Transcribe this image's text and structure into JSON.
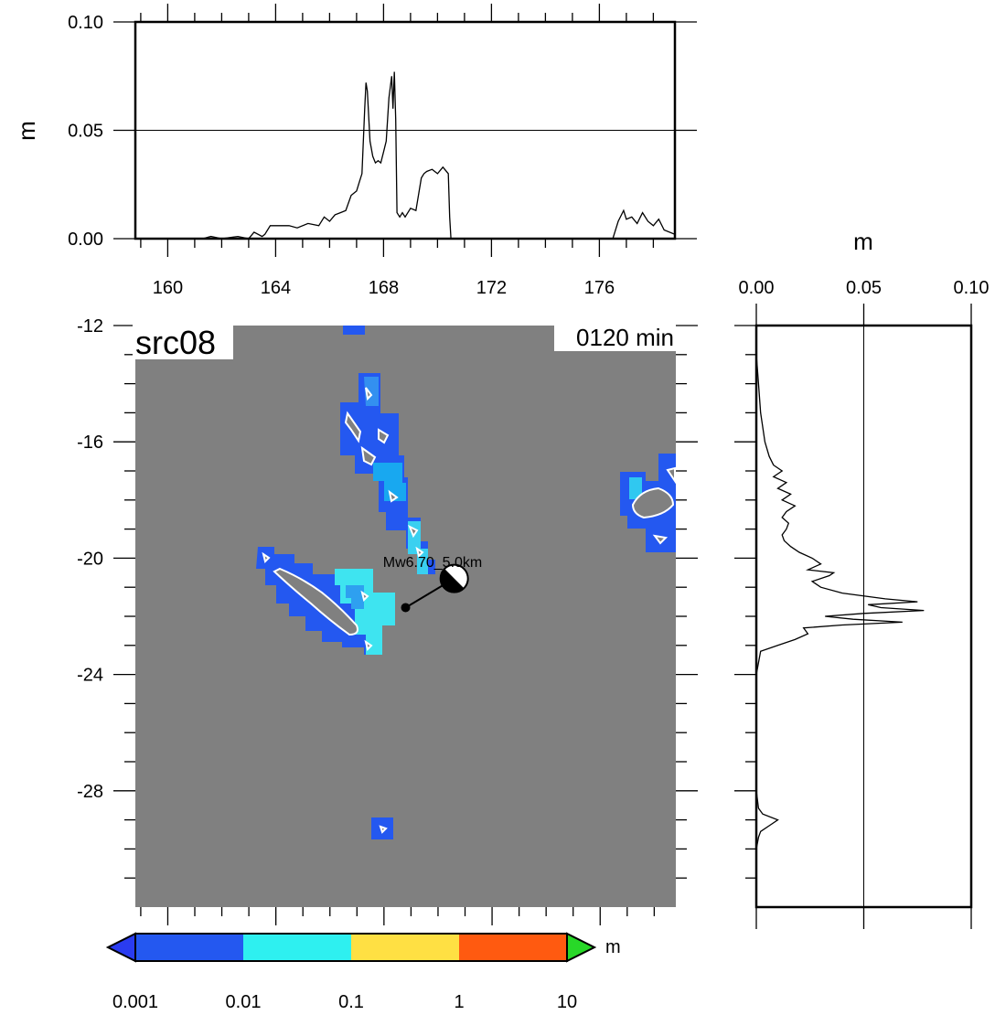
{
  "label": "src08",
  "time": "0120 min",
  "event": "Mw6.70_5.0km",
  "units": {
    "top_y": "m",
    "right_x": "m",
    "colorbar": "m"
  },
  "chart_data": [
    {
      "type": "line",
      "panel": "top-profile",
      "xlim": [
        158.8,
        178.8
      ],
      "ylim": [
        0,
        0.1
      ],
      "ylabel": "m",
      "xticks": [
        160,
        164,
        168,
        172,
        176
      ],
      "yticks": [
        "0.00",
        "0.05",
        "0.10"
      ],
      "grid_value": 0.05,
      "x": [
        158.8,
        161.3,
        161.6,
        162.0,
        162.6,
        163.0,
        163.2,
        163.5,
        163.6,
        163.8,
        164.5,
        164.8,
        165.2,
        165.6,
        165.8,
        166.0,
        166.2,
        166.4,
        166.6,
        166.8,
        167.0,
        167.1,
        167.2,
        167.3,
        167.35,
        167.4,
        167.5,
        167.6,
        167.7,
        167.8,
        167.9,
        168.0,
        168.1,
        168.15,
        168.2,
        168.3,
        168.35,
        168.4,
        168.45,
        168.5,
        168.6,
        168.7,
        168.8,
        169.0,
        169.2,
        169.4,
        169.5,
        169.6,
        169.8,
        170.0,
        170.2,
        170.4,
        170.45,
        170.5,
        176.5,
        176.7,
        176.9,
        177.0,
        177.2,
        177.4,
        177.6,
        177.8,
        178.0,
        178.2,
        178.4,
        178.8
      ],
      "y": [
        0,
        0,
        0.001,
        0,
        0.001,
        0,
        0.003,
        0.001,
        0.002,
        0.006,
        0.006,
        0.005,
        0.007,
        0.006,
        0.01,
        0.008,
        0.011,
        0.012,
        0.013,
        0.02,
        0.022,
        0.026,
        0.03,
        0.06,
        0.072,
        0.068,
        0.045,
        0.038,
        0.035,
        0.036,
        0.035,
        0.04,
        0.045,
        0.055,
        0.065,
        0.075,
        0.06,
        0.077,
        0.055,
        0.012,
        0.01,
        0.012,
        0.01,
        0.014,
        0.013,
        0.028,
        0.03,
        0.031,
        0.032,
        0.03,
        0.033,
        0.03,
        0.01,
        0,
        0,
        0.008,
        0.013,
        0.009,
        0.01,
        0.007,
        0.012,
        0.008,
        0.006,
        0.009,
        0.004,
        0.002
      ]
    },
    {
      "type": "line",
      "panel": "right-profile",
      "xlim": [
        0,
        0.1
      ],
      "ylim": [
        -32,
        -12
      ],
      "xlabel": "m",
      "xticks": [
        "0.00",
        "0.05",
        "0.10"
      ],
      "grid_value": 0.05,
      "y": [
        -13.0,
        -14.0,
        -15.0,
        -16.0,
        -16.5,
        -16.8,
        -17.0,
        -17.2,
        -17.4,
        -17.6,
        -17.8,
        -18.0,
        -18.2,
        -18.4,
        -18.6,
        -18.8,
        -19.0,
        -19.2,
        -19.4,
        -19.6,
        -19.8,
        -20.0,
        -20.2,
        -20.4,
        -20.5,
        -20.6,
        -20.8,
        -21.0,
        -21.2,
        -21.4,
        -21.5,
        -21.6,
        -21.7,
        -21.8,
        -21.9,
        -22.0,
        -22.1,
        -22.2,
        -22.3,
        -22.4,
        -22.6,
        -22.8,
        -23.0,
        -23.2,
        -24.0,
        -26.0,
        -28.0,
        -28.6,
        -28.8,
        -29.0,
        -29.2,
        -29.4,
        -29.6,
        -30.0,
        -32.0
      ],
      "x": [
        0,
        0.001,
        0.002,
        0.004,
        0.006,
        0.008,
        0.012,
        0.008,
        0.014,
        0.01,
        0.016,
        0.012,
        0.018,
        0.014,
        0.012,
        0.015,
        0.014,
        0.012,
        0.013,
        0.016,
        0.02,
        0.026,
        0.03,
        0.024,
        0.036,
        0.034,
        0.026,
        0.03,
        0.04,
        0.06,
        0.075,
        0.052,
        0.058,
        0.078,
        0.05,
        0.032,
        0.045,
        0.068,
        0.04,
        0.022,
        0.024,
        0.018,
        0.01,
        0.002,
        0,
        0,
        0,
        0.001,
        0.003,
        0.01,
        0.006,
        0.002,
        0.001,
        0,
        0
      ]
    },
    {
      "type": "heatmap",
      "panel": "map",
      "xlim": [
        158.8,
        178.8
      ],
      "ylim": [
        -32,
        -12
      ],
      "xticks": [
        160,
        164,
        168,
        172,
        176
      ],
      "yticks": [
        -12,
        -16,
        -20,
        -24,
        -28
      ],
      "colorbar": {
        "ticks": [
          "0.001",
          "0.01",
          "0.1",
          "1",
          "10"
        ],
        "unit": "m",
        "colors": [
          "#2458f0",
          "#2ef0f0",
          "#ffe043",
          "#ff5a10",
          "#28d828"
        ]
      },
      "epicenter": {
        "lon": 168.8,
        "lat": -21.7
      },
      "focal_mechanism": {
        "lon": 170.6,
        "lat": -20.7
      }
    }
  ]
}
